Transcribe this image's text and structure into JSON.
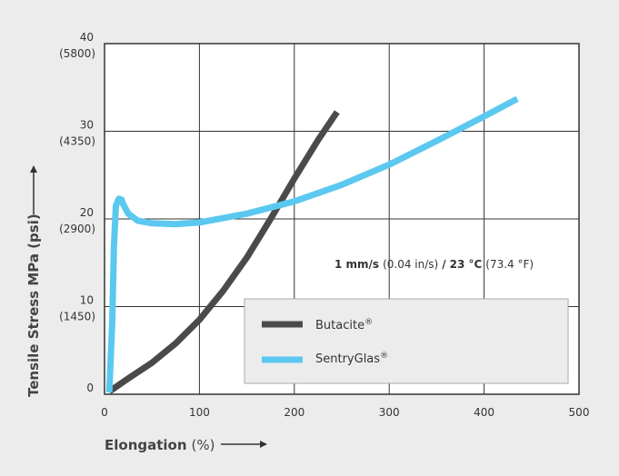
{
  "chart_data": {
    "type": "line",
    "xlabel": "Elongation",
    "xlabel_unit": "(%)",
    "ylabel": "Tensile Stress MPa (psi)",
    "xlim": [
      0,
      500
    ],
    "ylim": [
      0,
      40
    ],
    "grid": true,
    "x_ticks": [
      "0",
      "100",
      "200",
      "300",
      "400",
      "500"
    ],
    "y_ticks": [
      {
        "value": 0,
        "label": "0",
        "sublabel": ""
      },
      {
        "value": 10,
        "label": "10",
        "sublabel": "(1450)"
      },
      {
        "value": 20,
        "label": "20",
        "sublabel": "(2900)"
      },
      {
        "value": 30,
        "label": "30",
        "sublabel": "(4350)"
      },
      {
        "value": 40,
        "label": "40",
        "sublabel": "(5800)"
      }
    ],
    "condition": {
      "rate": "1 mm/s",
      "rate_imperial": "(0.04 in/s)",
      "separator": "/",
      "temp": "23 °C",
      "temp_imperial": "(73.4 °F)"
    },
    "legend_position": "bottom-right",
    "series": [
      {
        "name": "Butacite",
        "mark": "®",
        "color": "#4a4a4a",
        "x": [
          5,
          25,
          50,
          75,
          100,
          125,
          150,
          175,
          200,
          225,
          245
        ],
        "y": [
          0.3,
          1.8,
          3.6,
          5.8,
          8.5,
          11.8,
          15.6,
          20.0,
          24.6,
          29.0,
          32.2
        ]
      },
      {
        "name": "SentryGlas",
        "mark": "®",
        "color": "#5bc8ef",
        "x": [
          5,
          8,
          10,
          12,
          15,
          18,
          20,
          25,
          35,
          50,
          75,
          100,
          150,
          200,
          250,
          300,
          350,
          400,
          435
        ],
        "y": [
          0.2,
          8.0,
          17.0,
          21.5,
          22.3,
          22.2,
          21.6,
          20.6,
          19.8,
          19.5,
          19.4,
          19.6,
          20.6,
          22.0,
          23.9,
          26.2,
          28.9,
          31.7,
          33.7
        ]
      }
    ]
  }
}
